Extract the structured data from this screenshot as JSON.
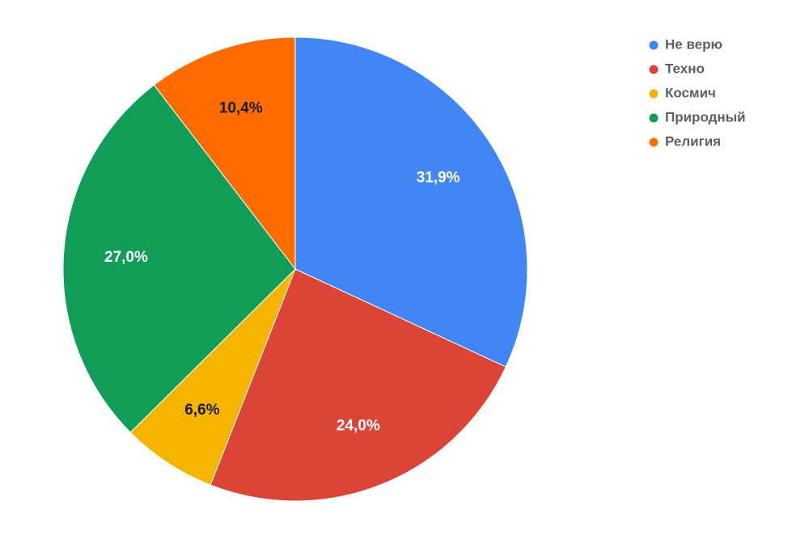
{
  "chart_data": {
    "type": "pie",
    "categories": [
      "Не верю",
      "Техно",
      "Космич",
      "Природный",
      "Религия"
    ],
    "values": [
      31.9,
      24.0,
      6.6,
      27.0,
      10.4
    ],
    "value_labels": [
      "31,9%",
      "24,0%",
      "6,6%",
      "27,0%",
      "10,4%"
    ],
    "colors": [
      "#4285f4",
      "#db4437",
      "#f4b400",
      "#0f9d58",
      "#ff6d00"
    ],
    "legend": "top-right"
  }
}
